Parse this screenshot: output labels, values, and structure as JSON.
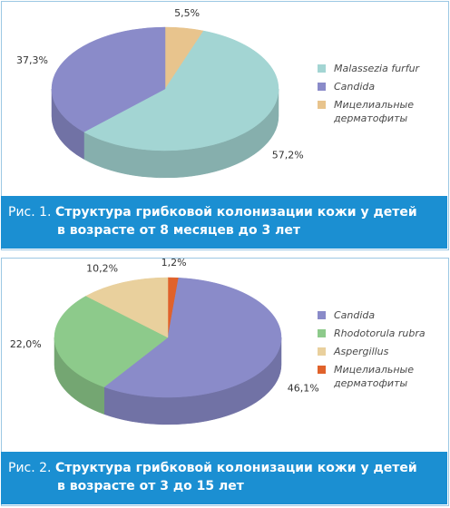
{
  "chart_data": [
    {
      "type": "pie",
      "caption_label": "Рис. 1.",
      "title": "Структура грибковой колонизации кожи у детей",
      "title_line2": "в возрасте от 8 месяцев до 3 лет",
      "categories": [
        "Malassezia furfur",
        "Candida",
        "Мицелиальные дерматофиты"
      ],
      "values": [
        57.2,
        37.3,
        5.5
      ],
      "value_labels": [
        "57,2%",
        "37,3%",
        "5,5%"
      ],
      "colors": [
        "#a3d5d3",
        "#8a8bc9",
        "#e8c48d"
      ]
    },
    {
      "type": "pie",
      "caption_label": "Рис. 2.",
      "title": "Структура грибковой колонизации кожи у детей",
      "title_line2": "в возрасте от 3 до 15 лет",
      "categories": [
        "Candida",
        "Rhodotorula rubra",
        "Aspergillus",
        "Мицелиальные дерматофиты"
      ],
      "values": [
        46.1,
        22.0,
        10.2,
        1.2
      ],
      "value_labels": [
        "46,1%",
        "22,0%",
        "10,2%",
        "1,2%"
      ],
      "colors": [
        "#8a8bc9",
        "#8dca8b",
        "#e9d09d",
        "#e0622b"
      ]
    }
  ]
}
